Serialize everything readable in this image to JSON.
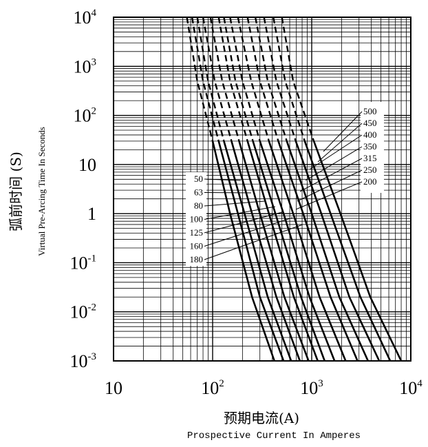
{
  "chart_data": {
    "type": "line",
    "title": "",
    "xlabel_cn": "预期电流(A)",
    "xlabel_en": "Prospective Current In Amperes",
    "ylabel_cn": "弧前时间 (S)",
    "ylabel_en": "Virtual Pre-Arcing Time In Seconds",
    "x_scale": "log",
    "y_scale": "log",
    "xlim": [
      10,
      10000
    ],
    "ylim": [
      0.001,
      10000
    ],
    "grid": true,
    "x_ticks": [
      {
        "base": "10",
        "exp": ""
      },
      {
        "base": "10",
        "exp": "2"
      },
      {
        "base": "10",
        "exp": "3"
      },
      {
        "base": "10",
        "exp": "4"
      }
    ],
    "y_ticks": [
      {
        "base": "10",
        "exp": "4"
      },
      {
        "base": "10",
        "exp": "3"
      },
      {
        "base": "10",
        "exp": "2"
      },
      {
        "base": "10",
        "exp": ""
      },
      {
        "base": "1",
        "exp": ""
      },
      {
        "base": "10",
        "exp": "-1"
      },
      {
        "base": "10",
        "exp": "-2"
      },
      {
        "base": "10",
        "exp": "-3"
      }
    ],
    "legend_left": [
      "50",
      "63",
      "80",
      "100",
      "125",
      "160",
      "180"
    ],
    "legend_right": [
      "500",
      "450",
      "400",
      "350",
      "315",
      "250",
      "200"
    ],
    "series": [
      {
        "name": "50",
        "x": [
          55,
          70,
          100,
          150,
          250,
          420
        ],
        "y": [
          10000,
          500,
          30,
          1,
          0.02,
          0.001
        ]
      },
      {
        "name": "63",
        "x": [
          62,
          80,
          115,
          180,
          300,
          520
        ],
        "y": [
          10000,
          500,
          30,
          1,
          0.02,
          0.001
        ]
      },
      {
        "name": "80",
        "x": [
          70,
          90,
          130,
          210,
          360,
          620
        ],
        "y": [
          10000,
          500,
          30,
          1,
          0.02,
          0.001
        ]
      },
      {
        "name": "100",
        "x": [
          80,
          105,
          155,
          250,
          440,
          760
        ],
        "y": [
          10000,
          500,
          30,
          1,
          0.02,
          0.001
        ]
      },
      {
        "name": "125",
        "x": [
          95,
          125,
          185,
          300,
          530,
          930
        ],
        "y": [
          10000,
          500,
          30,
          1,
          0.02,
          0.001
        ]
      },
      {
        "name": "160",
        "x": [
          115,
          150,
          225,
          370,
          660,
          1150
        ],
        "y": [
          10000,
          500,
          30,
          1,
          0.02,
          0.001
        ]
      },
      {
        "name": "180",
        "x": [
          130,
          170,
          255,
          430,
          780,
          1350
        ],
        "y": [
          10000,
          500,
          30,
          1,
          0.02,
          0.001
        ]
      },
      {
        "name": "200",
        "x": [
          150,
          200,
          300,
          520,
          950,
          1700
        ],
        "y": [
          10000,
          500,
          30,
          1,
          0.02,
          0.001
        ]
      },
      {
        "name": "250",
        "x": [
          180,
          245,
          370,
          650,
          1200,
          2200
        ],
        "y": [
          10000,
          500,
          30,
          1,
          0.02,
          0.001
        ]
      },
      {
        "name": "315",
        "x": [
          225,
          300,
          460,
          820,
          1550,
          2900
        ],
        "y": [
          10000,
          500,
          30,
          1,
          0.02,
          0.001
        ]
      },
      {
        "name": "350",
        "x": [
          270,
          360,
          560,
          1000,
          1900,
          3700
        ],
        "y": [
          10000,
          500,
          30,
          1,
          0.02,
          0.001
        ]
      },
      {
        "name": "400",
        "x": [
          330,
          440,
          690,
          1250,
          2400,
          4800
        ],
        "y": [
          10000,
          500,
          30,
          1,
          0.02,
          0.001
        ]
      },
      {
        "name": "450",
        "x": [
          410,
          540,
          850,
          1550,
          3100,
          6200
        ],
        "y": [
          10000,
          500,
          30,
          1,
          0.02,
          0.001
        ]
      },
      {
        "name": "500",
        "x": [
          500,
          650,
          1050,
          1950,
          3900,
          8000
        ],
        "y": [
          10000,
          500,
          30,
          1,
          0.02,
          0.001
        ]
      }
    ]
  }
}
